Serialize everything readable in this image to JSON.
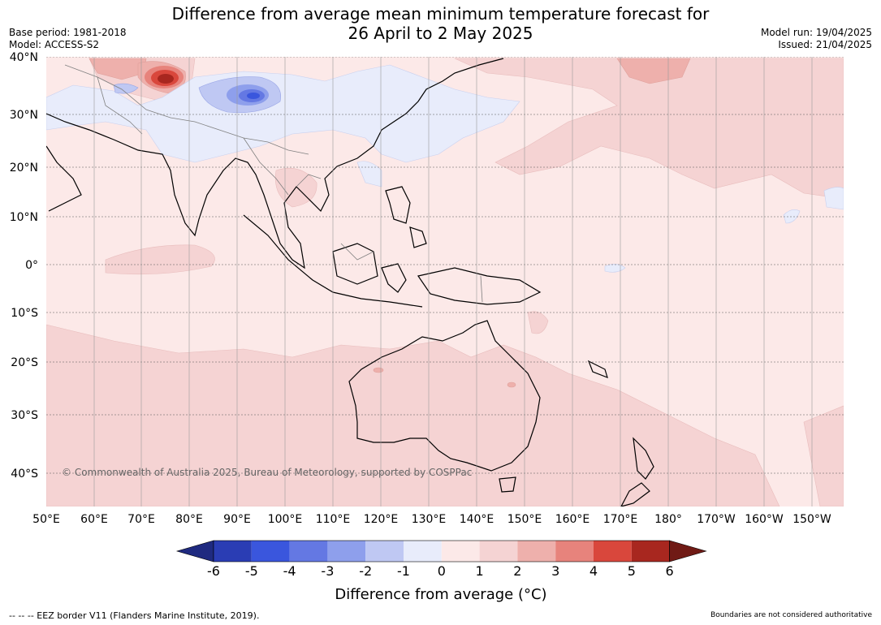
{
  "title_line1": "Difference from average mean minimum temperature forecast for",
  "title_line2": "26 April to 2 May 2025",
  "base_period": "Base period: 1981-2018",
  "model": "Model: ACCESS-S2",
  "model_run": "Model run: 19/04/2025",
  "issued": "Issued: 21/04/2025",
  "copyright": "© Commonwealth of Australia 2025, Bureau of Meteorology, supported by COSPPac",
  "colorbar_title": "Difference from average (°C)",
  "colorbar_ticks": [
    "-6",
    "-5",
    "-4",
    "-3",
    "-2",
    "-1",
    "0",
    "1",
    "2",
    "3",
    "4",
    "5",
    "6"
  ],
  "colorbar_colors": [
    "#1f2a80",
    "#2a3db4",
    "#3a56dd",
    "#6478e3",
    "#8e9fec",
    "#bfc8f3",
    "#e8ecfb",
    "#fce9e8",
    "#f5d3d3",
    "#eeb0ac",
    "#e7837c",
    "#d9473c",
    "#a8271f",
    "#701a15"
  ],
  "lon_labels": [
    "50°E",
    "60°E",
    "70°E",
    "80°E",
    "90°E",
    "100°E",
    "110°E",
    "120°E",
    "130°E",
    "140°E",
    "150°E",
    "160°E",
    "170°E",
    "180°",
    "170°W",
    "160°W",
    "150°W"
  ],
  "lat_labels": [
    "40°N",
    "30°N",
    "20°N",
    "10°N",
    "0°",
    "10°S",
    "20°S",
    "30°S",
    "40°S"
  ],
  "footer_left": "--  --  -- EEZ border V11 (Flanders Marine Institute, 2019).",
  "footer_right": "Boundaries are not considered authoritative"
}
